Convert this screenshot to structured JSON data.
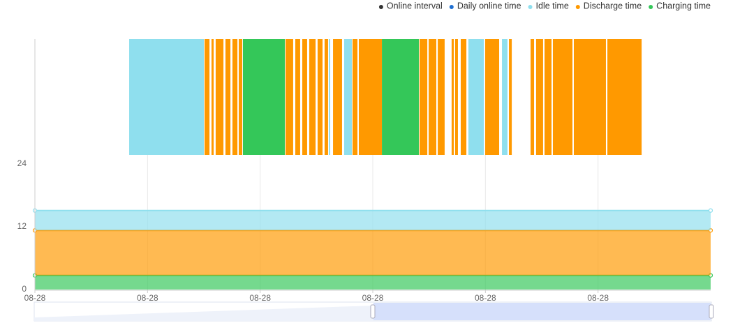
{
  "chart_data": {
    "type": "timeline-area",
    "series": [
      {
        "name": "Online interval",
        "color": "#333333"
      },
      {
        "name": "Daily online time",
        "color": "#1f6fd1"
      },
      {
        "name": "Idle time",
        "color": "#8fdfee",
        "x": [
          0,
          6
        ],
        "values": [
          3.8,
          3.8
        ]
      },
      {
        "name": "Discharge time",
        "color": "#ff9900",
        "x": [
          0,
          6
        ],
        "values": [
          8.6,
          8.6
        ]
      },
      {
        "name": "Charging time",
        "color": "#34c759",
        "x": [
          0,
          6
        ],
        "values": [
          2.7,
          2.7
        ]
      }
    ],
    "stack_order": [
      4,
      3,
      2
    ],
    "intervals": [
      {
        "start": 0.837,
        "end": 1.5,
        "series": 2
      },
      {
        "start": 1.506,
        "end": 1.55,
        "series": 3
      },
      {
        "start": 1.568,
        "end": 1.587,
        "series": 3
      },
      {
        "start": 1.605,
        "end": 1.674,
        "series": 3
      },
      {
        "start": 1.692,
        "end": 1.736,
        "series": 3
      },
      {
        "start": 1.754,
        "end": 1.798,
        "series": 3
      },
      {
        "start": 1.81,
        "end": 1.841,
        "series": 3
      },
      {
        "start": 1.847,
        "end": 2.219,
        "series": 4
      },
      {
        "start": 2.225,
        "end": 2.293,
        "series": 3
      },
      {
        "start": 2.312,
        "end": 2.355,
        "series": 3
      },
      {
        "start": 2.374,
        "end": 2.417,
        "series": 3
      },
      {
        "start": 2.436,
        "end": 2.492,
        "series": 3
      },
      {
        "start": 2.51,
        "end": 2.554,
        "series": 3
      },
      {
        "start": 2.572,
        "end": 2.603,
        "series": 3
      },
      {
        "start": 2.61,
        "end": 2.622,
        "series": 2
      },
      {
        "start": 2.647,
        "end": 2.727,
        "series": 3
      },
      {
        "start": 2.746,
        "end": 2.814,
        "series": 2
      },
      {
        "start": 2.82,
        "end": 2.864,
        "series": 3
      },
      {
        "start": 2.876,
        "end": 3.081,
        "series": 3
      },
      {
        "start": 3.081,
        "end": 3.409,
        "series": 4
      },
      {
        "start": 3.415,
        "end": 3.484,
        "series": 3
      },
      {
        "start": 3.496,
        "end": 3.564,
        "series": 3
      },
      {
        "start": 3.577,
        "end": 3.638,
        "series": 3
      },
      {
        "start": 3.7,
        "end": 3.719,
        "series": 3
      },
      {
        "start": 3.731,
        "end": 3.756,
        "series": 3
      },
      {
        "start": 3.781,
        "end": 3.831,
        "series": 3
      },
      {
        "start": 3.849,
        "end": 3.986,
        "series": 2
      },
      {
        "start": 3.998,
        "end": 4.122,
        "series": 3
      },
      {
        "start": 4.147,
        "end": 4.196,
        "series": 2
      },
      {
        "start": 4.209,
        "end": 4.234,
        "series": 3
      },
      {
        "start": 4.401,
        "end": 4.432,
        "series": 3
      },
      {
        "start": 4.45,
        "end": 4.512,
        "series": 3
      },
      {
        "start": 4.525,
        "end": 4.587,
        "series": 3
      },
      {
        "start": 4.599,
        "end": 4.773,
        "series": 3
      },
      {
        "start": 4.785,
        "end": 5.07,
        "series": 3
      },
      {
        "start": 5.083,
        "end": 5.387,
        "series": 3
      }
    ],
    "xlim": [
      0,
      6
    ],
    "xticks": [
      {
        "value": 0,
        "label": "08-28"
      },
      {
        "value": 1,
        "label": "08-28"
      },
      {
        "value": 2,
        "label": "08-28"
      },
      {
        "value": 3,
        "label": "08-28"
      },
      {
        "value": 4,
        "label": "08-28"
      },
      {
        "value": 5,
        "label": "08-28"
      }
    ],
    "ylim": [
      0,
      24
    ],
    "yticks": [
      0,
      12,
      24
    ],
    "grid": true
  }
}
